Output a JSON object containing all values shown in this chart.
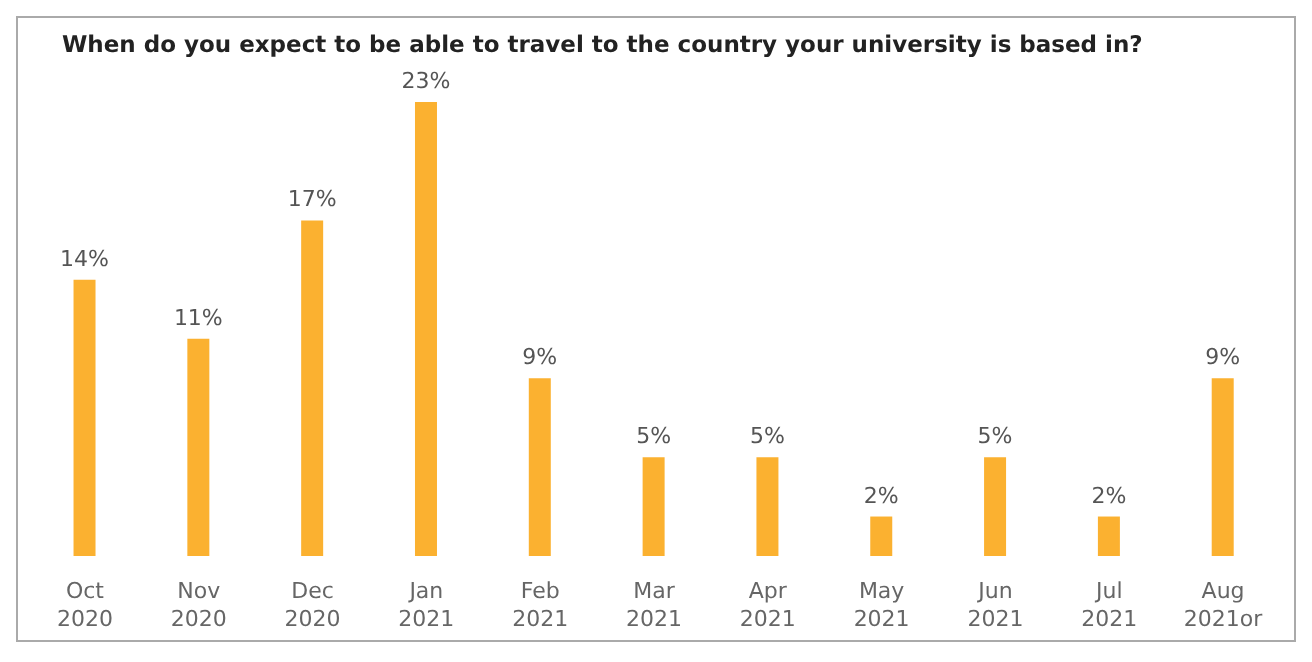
{
  "chart_data": {
    "type": "bar",
    "title": "When do you expect to be able to travel to the country your university is based in?",
    "categories": [
      "Oct\n2020",
      "Nov\n2020",
      "Dec\n2020",
      "Jan\n2021",
      "Feb\n2021",
      "Mar\n2021",
      "Apr\n2021",
      "May\n2021",
      "Jun\n2021",
      "Jul\n2021",
      "Aug\n2021or"
    ],
    "values": [
      14,
      11,
      17,
      23,
      9,
      5,
      5,
      2,
      5,
      2,
      9
    ],
    "value_labels": [
      "14%",
      "11%",
      "17%",
      "23%",
      "9%",
      "5%",
      "5%",
      "2%",
      "5%",
      "2%",
      "9%"
    ],
    "color": "#fbb130",
    "grid": false,
    "legend": false
  }
}
